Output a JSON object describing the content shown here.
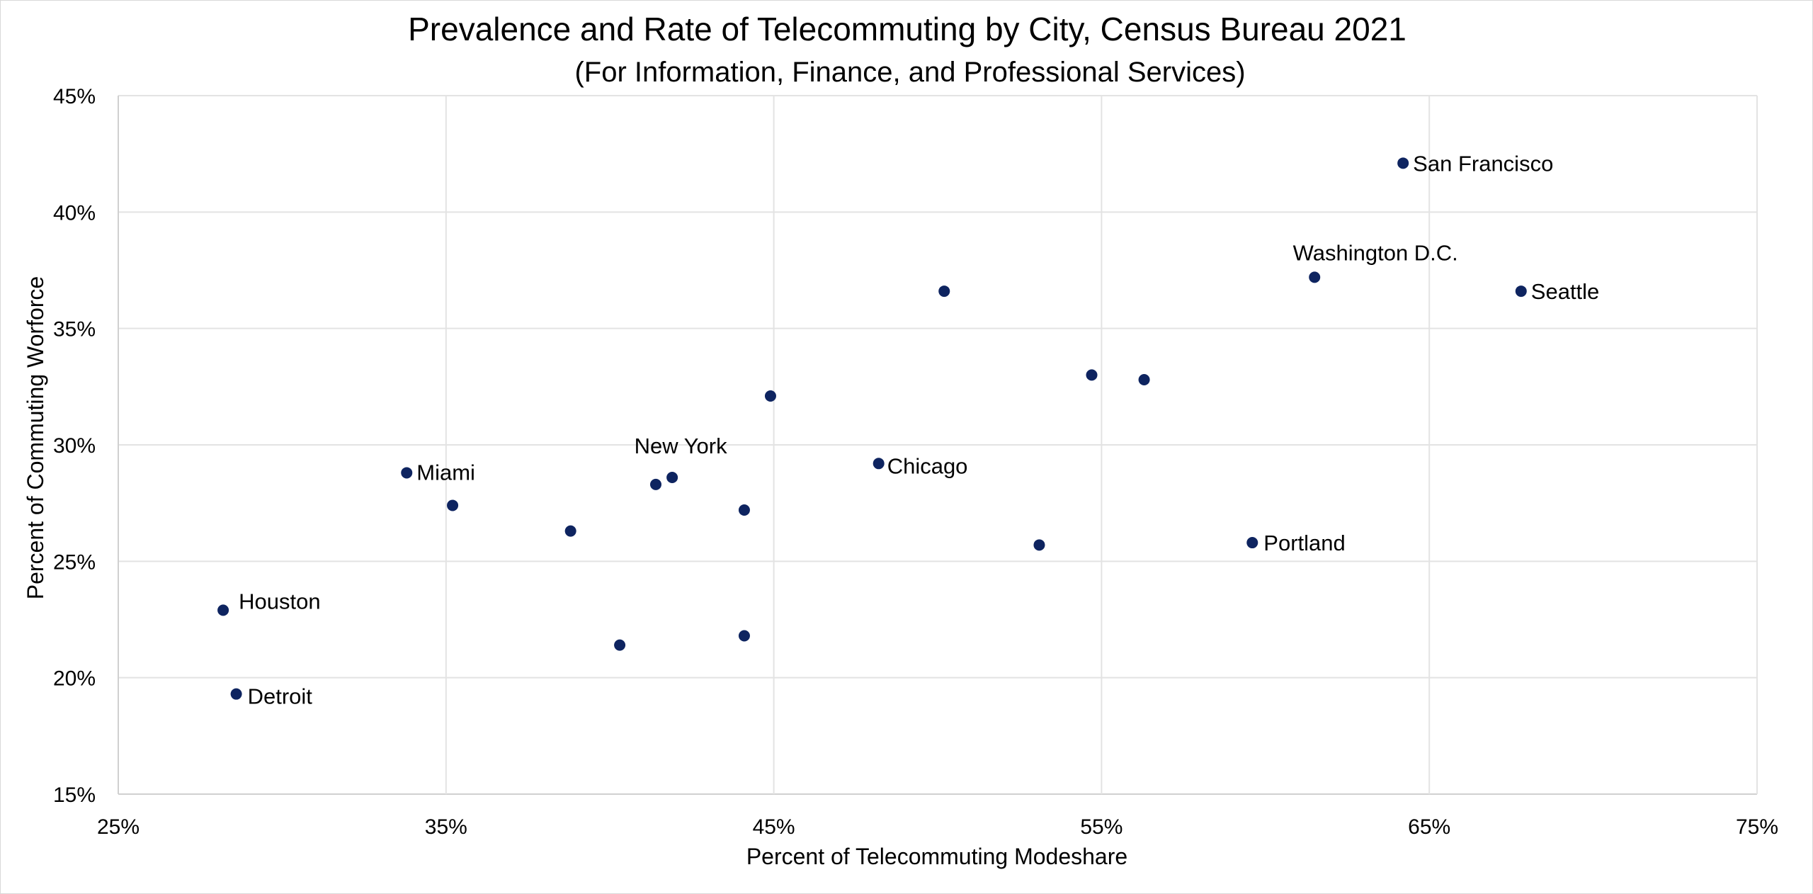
{
  "chart_data": {
    "type": "scatter",
    "title": "Prevalence and Rate of Telecommuting by City, Census Bureau 2021",
    "subtitle": "(For Information, Finance, and Professional Services)",
    "xlabel": "Percent of Telecommuting Modeshare",
    "ylabel": "Percent of Commuting Worforce",
    "xlim": [
      25,
      75
    ],
    "ylim": [
      15,
      45
    ],
    "x_ticks": [
      "25%",
      "35%",
      "45%",
      "55%",
      "65%",
      "75%"
    ],
    "y_ticks": [
      "15%",
      "20%",
      "25%",
      "30%",
      "35%",
      "40%",
      "45%"
    ],
    "grid": true,
    "marker_color": "#0e2460",
    "points": [
      {
        "x": 28.2,
        "y": 22.9,
        "label": "Houston"
      },
      {
        "x": 28.6,
        "y": 19.3,
        "label": "Detroit"
      },
      {
        "x": 33.8,
        "y": 28.8,
        "label": "Miami"
      },
      {
        "x": 35.2,
        "y": 27.4,
        "label": ""
      },
      {
        "x": 38.8,
        "y": 26.3,
        "label": ""
      },
      {
        "x": 40.3,
        "y": 21.4,
        "label": ""
      },
      {
        "x": 41.4,
        "y": 28.3,
        "label": ""
      },
      {
        "x": 41.9,
        "y": 28.6,
        "label": "New York"
      },
      {
        "x": 44.1,
        "y": 27.2,
        "label": ""
      },
      {
        "x": 44.1,
        "y": 21.8,
        "label": ""
      },
      {
        "x": 44.9,
        "y": 32.1,
        "label": ""
      },
      {
        "x": 48.2,
        "y": 29.2,
        "label": "Chicago"
      },
      {
        "x": 50.2,
        "y": 36.6,
        "label": ""
      },
      {
        "x": 53.1,
        "y": 25.7,
        "label": ""
      },
      {
        "x": 54.7,
        "y": 33.0,
        "label": ""
      },
      {
        "x": 56.3,
        "y": 32.8,
        "label": ""
      },
      {
        "x": 59.6,
        "y": 25.8,
        "label": "Portland"
      },
      {
        "x": 61.5,
        "y": 37.2,
        "label": "Washington D.C."
      },
      {
        "x": 64.2,
        "y": 42.1,
        "label": "San Francisco"
      },
      {
        "x": 67.8,
        "y": 36.6,
        "label": "Seattle"
      }
    ]
  }
}
